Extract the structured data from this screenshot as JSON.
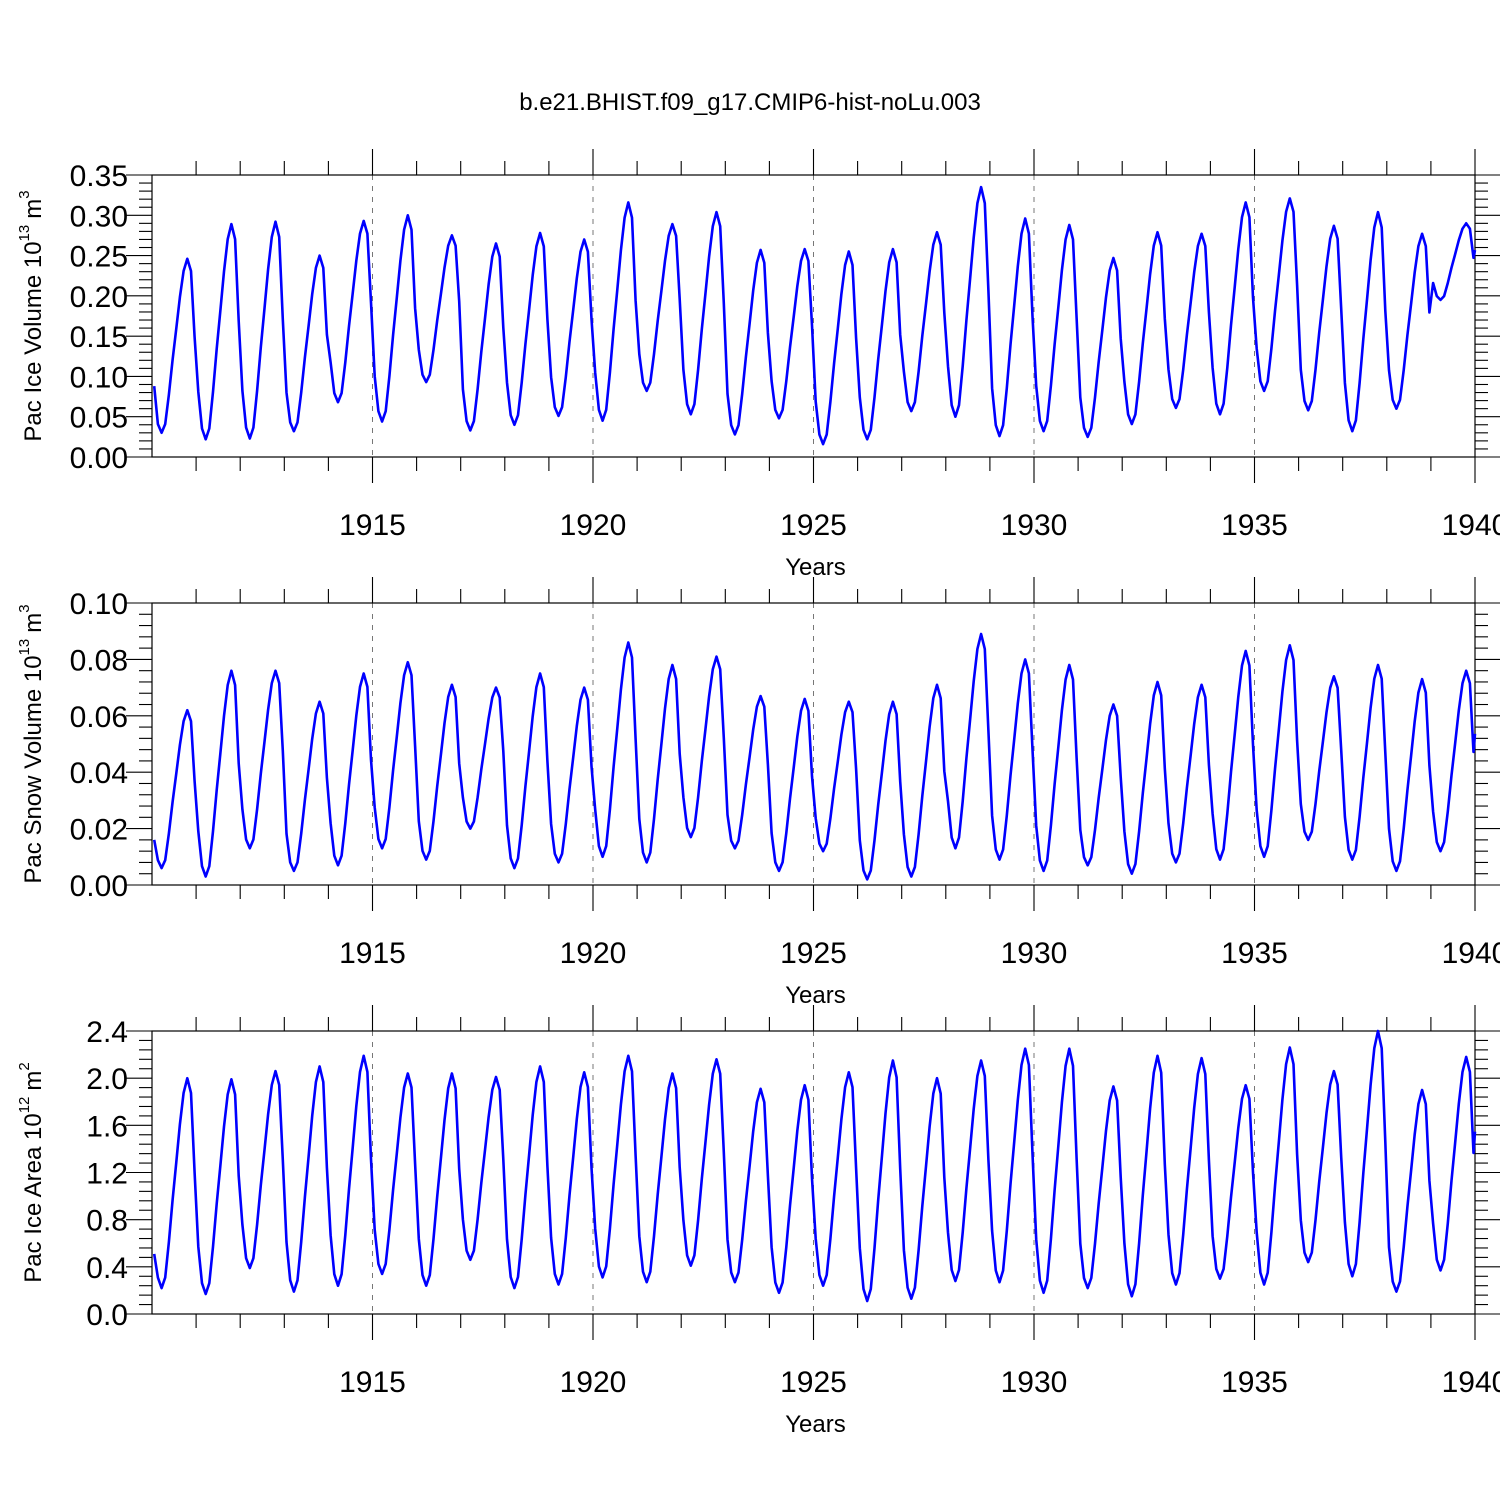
{
  "figure_title": "b.e21.BHIST.f09_g17.CMIP6-hist-noLu.003",
  "colors": {
    "line": "#0000ff",
    "axis": "#000000",
    "grid": "#777777"
  },
  "chart_data": [
    {
      "type": "line",
      "title": "",
      "xlabel": "Years",
      "ylabel_text": "Pac Ice Volume 10",
      "ylabel_exp": "13",
      "ylabel_unit": "m",
      "ylabel_unit_exp": "3",
      "xlim": [
        1910,
        1940
      ],
      "ylim": [
        0,
        0.35
      ],
      "x_ticks": [
        1915,
        1920,
        1925,
        1930,
        1935,
        1940
      ],
      "y_ticks": [
        "0.00",
        "0.05",
        "0.10",
        "0.15",
        "0.20",
        "0.25",
        "0.30",
        "0.35"
      ],
      "grid_x": [
        1915,
        1920,
        1925,
        1930,
        1935
      ],
      "annual_min": [
        0.03,
        0.022,
        0.023,
        0.032,
        0.068,
        0.044,
        0.093,
        0.033,
        0.04,
        0.051,
        0.045,
        0.082,
        0.053,
        0.028,
        0.048,
        0.016,
        0.022,
        0.057,
        0.05,
        0.026,
        0.032,
        0.025,
        0.041,
        0.061,
        0.053,
        0.082,
        0.058,
        0.032,
        0.06,
        0.195
      ],
      "annual_max": [
        0.246,
        0.289,
        0.292,
        0.25,
        0.293,
        0.3,
        0.275,
        0.265,
        0.278,
        0.27,
        0.316,
        0.289,
        0.304,
        0.257,
        0.258,
        0.255,
        0.258,
        0.279,
        0.335,
        0.296,
        0.288,
        0.247,
        0.279,
        0.277,
        0.316,
        0.321,
        0.287,
        0.304,
        0.277,
        0.29
      ],
      "first_value": 0.088,
      "series": [
        {
          "name": "Pac Ice Volume",
          "values_note": "monthly, 1910-1940"
        }
      ]
    },
    {
      "type": "line",
      "title": "",
      "xlabel": "Years",
      "ylabel_text": "Pac Snow Volume 10",
      "ylabel_exp": "13",
      "ylabel_unit": "m",
      "ylabel_unit_exp": "3",
      "xlim": [
        1910,
        1940
      ],
      "ylim": [
        0,
        0.1
      ],
      "x_ticks": [
        1915,
        1920,
        1925,
        1930,
        1935,
        1940
      ],
      "y_ticks": [
        "0.00",
        "0.02",
        "0.04",
        "0.06",
        "0.08",
        "0.10"
      ],
      "grid_x": [
        1915,
        1920,
        1925,
        1930,
        1935
      ],
      "annual_min": [
        0.006,
        0.003,
        0.013,
        0.005,
        0.007,
        0.013,
        0.009,
        0.02,
        0.006,
        0.008,
        0.01,
        0.008,
        0.017,
        0.013,
        0.005,
        0.012,
        0.002,
        0.003,
        0.013,
        0.009,
        0.005,
        0.007,
        0.004,
        0.008,
        0.009,
        0.01,
        0.016,
        0.009,
        0.005,
        0.012
      ],
      "annual_max": [
        0.062,
        0.076,
        0.076,
        0.065,
        0.075,
        0.079,
        0.071,
        0.07,
        0.075,
        0.07,
        0.086,
        0.078,
        0.081,
        0.067,
        0.066,
        0.065,
        0.065,
        0.071,
        0.089,
        0.08,
        0.078,
        0.064,
        0.072,
        0.071,
        0.083,
        0.085,
        0.074,
        0.078,
        0.073,
        0.076
      ],
      "first_value": 0.016,
      "series": [
        {
          "name": "Pac Snow Volume",
          "values_note": "monthly, 1910-1940"
        }
      ]
    },
    {
      "type": "line",
      "title": "",
      "xlabel": "Years",
      "ylabel_text": "Pac Ice Area 10",
      "ylabel_exp": "12",
      "ylabel_unit": "m",
      "ylabel_unit_exp": "2",
      "xlim": [
        1910,
        1940
      ],
      "ylim": [
        0,
        2.4
      ],
      "x_ticks": [
        1915,
        1920,
        1925,
        1930,
        1935,
        1940
      ],
      "y_ticks": [
        "0.0",
        "0.4",
        "0.8",
        "1.2",
        "1.6",
        "2.0",
        "2.4"
      ],
      "grid_x": [
        1915,
        1920,
        1925,
        1930,
        1935
      ],
      "annual_min": [
        0.22,
        0.17,
        0.39,
        0.19,
        0.24,
        0.34,
        0.24,
        0.46,
        0.22,
        0.25,
        0.31,
        0.27,
        0.41,
        0.27,
        0.18,
        0.24,
        0.11,
        0.13,
        0.28,
        0.27,
        0.18,
        0.22,
        0.15,
        0.25,
        0.3,
        0.25,
        0.44,
        0.32,
        0.19,
        0.37
      ],
      "annual_max": [
        2.0,
        1.99,
        2.06,
        2.1,
        2.19,
        2.04,
        2.04,
        2.01,
        2.1,
        2.05,
        2.19,
        2.04,
        2.16,
        1.91,
        1.94,
        2.05,
        2.15,
        2.0,
        2.15,
        2.25,
        2.25,
        1.93,
        2.19,
        2.17,
        1.94,
        2.26,
        2.06,
        2.4,
        1.9,
        2.18
      ],
      "first_value": 0.51,
      "series": [
        {
          "name": "Pac Ice Area",
          "values_note": "monthly, 1910-1940"
        }
      ]
    }
  ]
}
